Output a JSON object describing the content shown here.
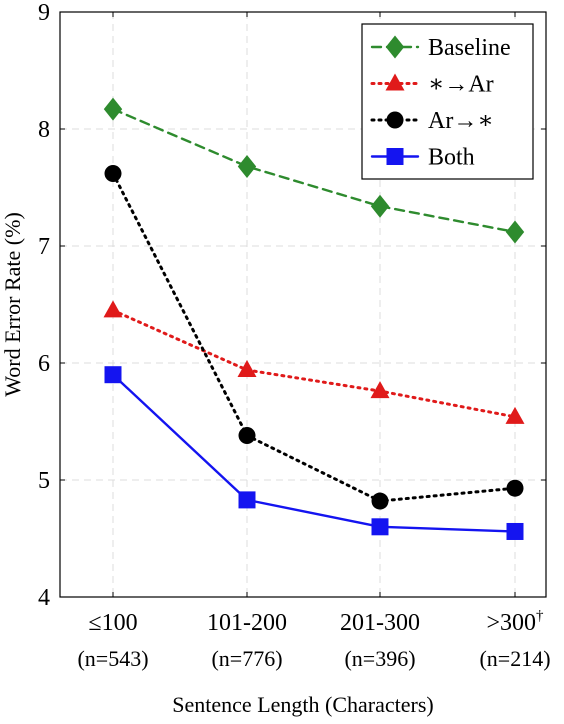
{
  "chart_data": {
    "type": "line",
    "title": "",
    "xlabel": "Sentence Length (Characters)",
    "ylabel": "Word Error Rate (%)",
    "ylim": [
      4,
      9
    ],
    "yticks": [
      "4",
      "5",
      "6",
      "7",
      "8",
      "9"
    ],
    "categories": [
      {
        "line1": "≤100",
        "sup": "",
        "line2": "(n=543)"
      },
      {
        "line1": "101-200",
        "sup": "",
        "line2": "(n=776)"
      },
      {
        "line1": "201-300",
        "sup": "",
        "line2": "(n=396)"
      },
      {
        "line1": ">300",
        "sup": "†",
        "line2": "(n=214)"
      }
    ],
    "grid": true,
    "legend_position": "top-right",
    "series": [
      {
        "name": "Baseline",
        "color": "#2e8b2e",
        "marker": "diamond",
        "dash": "dashed",
        "values": [
          8.17,
          7.68,
          7.34,
          7.12
        ]
      },
      {
        "name": "∗→Ar",
        "color": "#e01a1a",
        "marker": "triangle",
        "dash": "dotted",
        "values": [
          6.45,
          5.94,
          5.76,
          5.54
        ]
      },
      {
        "name": "Ar→∗",
        "color": "#000000",
        "marker": "circle",
        "dash": "dotted",
        "values": [
          7.62,
          5.38,
          4.82,
          4.93
        ]
      },
      {
        "name": "Both",
        "color": "#1414f0",
        "marker": "square",
        "dash": "solid",
        "values": [
          5.9,
          4.83,
          4.6,
          4.56
        ]
      }
    ]
  }
}
